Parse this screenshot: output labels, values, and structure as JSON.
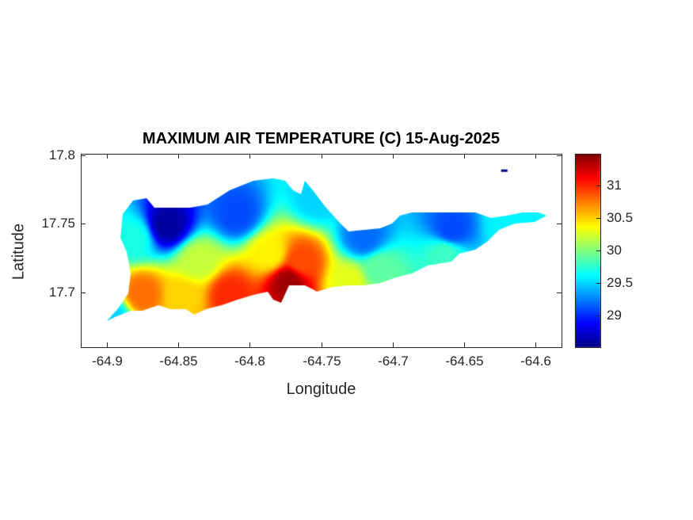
{
  "chart_data": {
    "type": "heatmap",
    "title": "MAXIMUM AIR TEMPERATURE (C) 15-Aug-2025",
    "xlabel": "Longitude",
    "ylabel": "Latitude",
    "xlim": [
      -64.918,
      -64.582
    ],
    "ylim": [
      17.66,
      17.801
    ],
    "xticks": [
      -64.9,
      -64.85,
      -64.8,
      -64.75,
      -64.7,
      -64.65,
      -64.6
    ],
    "xtick_labels": [
      "-64.9",
      "-64.85",
      "-64.8",
      "-64.75",
      "-64.7",
      "-64.65",
      "-64.6"
    ],
    "yticks": [
      17.7,
      17.75,
      17.8
    ],
    "ytick_labels": [
      "17.7",
      "17.75",
      "17.8"
    ],
    "colormap": "jet",
    "clim": [
      28.51,
      31.49
    ],
    "colorbar_ticks": [
      29,
      29.5,
      30,
      30.5,
      31
    ],
    "colorbar_tick_labels": [
      "29",
      "29.5",
      "30",
      "30.5",
      "31"
    ],
    "grid": false,
    "samples": [
      {
        "lon": -64.858,
        "lat": 17.749,
        "value": 28.6
      },
      {
        "lon": -64.809,
        "lat": 17.757,
        "value": 29.1
      },
      {
        "lon": -64.72,
        "lat": 17.74,
        "value": 29.2
      },
      {
        "lon": -64.659,
        "lat": 17.746,
        "value": 29.1
      },
      {
        "lon": -64.753,
        "lat": 17.769,
        "value": 29.5
      },
      {
        "lon": -64.62,
        "lat": 17.749,
        "value": 29.6
      },
      {
        "lon": -64.881,
        "lat": 17.74,
        "value": 29.7
      },
      {
        "lon": -64.836,
        "lat": 17.723,
        "value": 30.2
      },
      {
        "lon": -64.786,
        "lat": 17.728,
        "value": 30.4
      },
      {
        "lon": -64.764,
        "lat": 17.723,
        "value": 30.9
      },
      {
        "lon": -64.773,
        "lat": 17.708,
        "value": 31.4
      },
      {
        "lon": -64.814,
        "lat": 17.699,
        "value": 31.0
      },
      {
        "lon": -64.875,
        "lat": 17.699,
        "value": 30.8
      },
      {
        "lon": -64.847,
        "lat": 17.697,
        "value": 30.5
      },
      {
        "lon": -64.709,
        "lat": 17.717,
        "value": 29.9
      },
      {
        "lon": -64.731,
        "lat": 17.708,
        "value": 30.3
      },
      {
        "lon": -64.664,
        "lat": 17.728,
        "value": 29.8
      },
      {
        "lon": -64.897,
        "lat": 17.682,
        "value": 29.5
      }
    ],
    "islet": {
      "lon": -64.622,
      "lat": 17.789,
      "value": 28.5
    }
  }
}
